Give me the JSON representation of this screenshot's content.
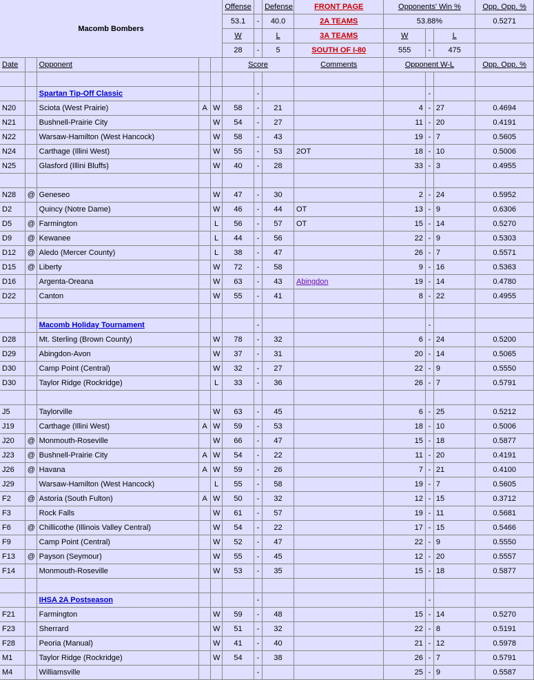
{
  "team_name": "Macomb Bombers",
  "header": {
    "offense_label": "Offense",
    "defense_label": "Defense",
    "opp_win_label": "Opponents' Win %",
    "opp_opp_label": "Opp. Opp. %",
    "offense_val": "53.1",
    "defense_val": "40.0",
    "opp_win_val": "53.88%",
    "opp_opp_val": "0.5271",
    "w_label": "W",
    "l_label": "L",
    "team_w": "28",
    "team_l": "5",
    "opp_w": "555",
    "opp_l": "475",
    "link_front": "FRONT PAGE",
    "link_2a": "2A TEAMS",
    "link_3a": "3A TEAMS",
    "link_south": "SOUTH OF I-80"
  },
  "cols": {
    "date": "Date",
    "opponent": "Opponent",
    "score": "Score",
    "comments": "Comments",
    "opp_wl": "Opponent W-L",
    "opp_opp": "Opp. Opp. %"
  },
  "sections": [
    {
      "title": "Spartan Tip-Off Classic",
      "games": [
        {
          "date": "N20",
          "at": "",
          "opp": "Sciota (West Prairie)",
          "away": "A",
          "wl": "W",
          "s1": "58",
          "s2": "21",
          "comm": "",
          "ow": "4",
          "ol": "27",
          "oop": "0.4694"
        },
        {
          "date": "N21",
          "at": "",
          "opp": "Bushnell-Prairie City",
          "away": "",
          "wl": "W",
          "s1": "54",
          "s2": "27",
          "comm": "",
          "ow": "11",
          "ol": "20",
          "oop": "0.4191"
        },
        {
          "date": "N22",
          "at": "",
          "opp": "Warsaw-Hamilton (West Hancock)",
          "away": "",
          "wl": "W",
          "s1": "58",
          "s2": "43",
          "comm": "",
          "ow": "19",
          "ol": "7",
          "oop": "0.5605"
        },
        {
          "date": "N24",
          "at": "",
          "opp": "Carthage (Illini West)",
          "away": "",
          "wl": "W",
          "s1": "55",
          "s2": "53",
          "comm": "2OT",
          "ow": "18",
          "ol": "10",
          "oop": "0.5006"
        },
        {
          "date": "N25",
          "at": "",
          "opp": "Glasford (Illini Bluffs)",
          "away": "",
          "wl": "W",
          "s1": "40",
          "s2": "28",
          "comm": "",
          "ow": "33",
          "ol": "3",
          "oop": "0.4955"
        }
      ]
    },
    {
      "title": "",
      "games": [
        {
          "date": "N28",
          "at": "@",
          "opp": "Geneseo",
          "away": "",
          "wl": "W",
          "s1": "47",
          "s2": "30",
          "comm": "",
          "ow": "2",
          "ol": "24",
          "oop": "0.5952"
        },
        {
          "date": "D2",
          "at": "",
          "opp": "Quincy (Notre Dame)",
          "away": "",
          "wl": "W",
          "s1": "46",
          "s2": "44",
          "comm": "OT",
          "ow": "13",
          "ol": "9",
          "oop": "0.6306"
        },
        {
          "date": "D5",
          "at": "@",
          "opp": "Farmington",
          "away": "",
          "wl": "L",
          "s1": "56",
          "s2": "57",
          "comm": "OT",
          "ow": "15",
          "ol": "14",
          "oop": "0.5270"
        },
        {
          "date": "D9",
          "at": "@",
          "opp": "Kewanee",
          "away": "",
          "wl": "L",
          "s1": "44",
          "s2": "56",
          "comm": "",
          "ow": "22",
          "ol": "9",
          "oop": "0.5303"
        },
        {
          "date": "D12",
          "at": "@",
          "opp": "Aledo (Mercer County)",
          "away": "",
          "wl": "L",
          "s1": "38",
          "s2": "47",
          "comm": "",
          "ow": "26",
          "ol": "7",
          "oop": "0.5571"
        },
        {
          "date": "D15",
          "at": "@",
          "opp": "Liberty",
          "away": "",
          "wl": "W",
          "s1": "72",
          "s2": "58",
          "comm": "",
          "ow": "9",
          "ol": "16",
          "oop": "0.5363"
        },
        {
          "date": "D16",
          "at": "",
          "opp": "Argenta-Oreana",
          "away": "",
          "wl": "W",
          "s1": "63",
          "s2": "43",
          "comm_link": "Abingdon",
          "ow": "19",
          "ol": "14",
          "oop": "0.4780"
        },
        {
          "date": "D22",
          "at": "",
          "opp": "Canton",
          "away": "",
          "wl": "W",
          "s1": "55",
          "s2": "41",
          "comm": "",
          "ow": "8",
          "ol": "22",
          "oop": "0.4955"
        }
      ]
    },
    {
      "title": "Macomb Holiday Tournament",
      "games": [
        {
          "date": "D28",
          "at": "",
          "opp": "Mt. Sterling (Brown County)",
          "away": "",
          "wl": "W",
          "s1": "78",
          "s2": "32",
          "comm": "",
          "ow": "6",
          "ol": "24",
          "oop": "0.5200"
        },
        {
          "date": "D29",
          "at": "",
          "opp": "Abingdon-Avon",
          "away": "",
          "wl": "W",
          "s1": "37",
          "s2": "31",
          "comm": "",
          "ow": "20",
          "ol": "14",
          "oop": "0.5065"
        },
        {
          "date": "D30",
          "at": "",
          "opp": "Camp Point (Central)",
          "away": "",
          "wl": "W",
          "s1": "32",
          "s2": "27",
          "comm": "",
          "ow": "22",
          "ol": "9",
          "oop": "0.5550"
        },
        {
          "date": "D30",
          "at": "",
          "opp": "Taylor Ridge (Rockridge)",
          "away": "",
          "wl": "L",
          "s1": "33",
          "s2": "36",
          "comm": "",
          "ow": "26",
          "ol": "7",
          "oop": "0.5791"
        }
      ]
    },
    {
      "title": "",
      "games": [
        {
          "date": "J5",
          "at": "",
          "opp": "Taylorville",
          "away": "",
          "wl": "W",
          "s1": "63",
          "s2": "45",
          "comm": "",
          "ow": "6",
          "ol": "25",
          "oop": "0.5212"
        },
        {
          "date": "J19",
          "at": "",
          "opp": "Carthage (Illini West)",
          "away": "A",
          "wl": "W",
          "s1": "59",
          "s2": "53",
          "comm": "",
          "ow": "18",
          "ol": "10",
          "oop": "0.5006"
        },
        {
          "date": "J20",
          "at": "@",
          "opp": "Monmouth-Roseville",
          "away": "",
          "wl": "W",
          "s1": "66",
          "s2": "47",
          "comm": "",
          "ow": "15",
          "ol": "18",
          "oop": "0.5877"
        },
        {
          "date": "J23",
          "at": "@",
          "opp": "Bushnell-Prairie City",
          "away": "A",
          "wl": "W",
          "s1": "54",
          "s2": "22",
          "comm": "",
          "ow": "11",
          "ol": "20",
          "oop": "0.4191"
        },
        {
          "date": "J26",
          "at": "@",
          "opp": "Havana",
          "away": "A",
          "wl": "W",
          "s1": "59",
          "s2": "26",
          "comm": "",
          "ow": "7",
          "ol": "21",
          "oop": "0.4100"
        },
        {
          "date": "J29",
          "at": "",
          "opp": "Warsaw-Hamilton (West Hancock)",
          "away": "",
          "wl": "L",
          "s1": "55",
          "s2": "58",
          "comm": "",
          "ow": "19",
          "ol": "7",
          "oop": "0.5605"
        },
        {
          "date": "F2",
          "at": "@",
          "opp": "Astoria (South Fulton)",
          "away": "A",
          "wl": "W",
          "s1": "50",
          "s2": "32",
          "comm": "",
          "ow": "12",
          "ol": "15",
          "oop": "0.3712"
        },
        {
          "date": "F3",
          "at": "",
          "opp": "Rock Falls",
          "away": "",
          "wl": "W",
          "s1": "61",
          "s2": "57",
          "comm": "",
          "ow": "19",
          "ol": "11",
          "oop": "0.5681"
        },
        {
          "date": "F6",
          "at": "@",
          "opp": "Chillicothe (Illinois Valley Central)",
          "away": "",
          "wl": "W",
          "s1": "54",
          "s2": "22",
          "comm": "",
          "ow": "17",
          "ol": "15",
          "oop": "0.5466"
        },
        {
          "date": "F9",
          "at": "",
          "opp": "Camp Point (Central)",
          "away": "",
          "wl": "W",
          "s1": "52",
          "s2": "47",
          "comm": "",
          "ow": "22",
          "ol": "9",
          "oop": "0.5550"
        },
        {
          "date": "F13",
          "at": "@",
          "opp": "Payson (Seymour)",
          "away": "",
          "wl": "W",
          "s1": "55",
          "s2": "45",
          "comm": "",
          "ow": "12",
          "ol": "20",
          "oop": "0.5557"
        },
        {
          "date": "F14",
          "at": "",
          "opp": "Monmouth-Roseville",
          "away": "",
          "wl": "W",
          "s1": "53",
          "s2": "35",
          "comm": "",
          "ow": "15",
          "ol": "18",
          "oop": "0.5877"
        }
      ]
    },
    {
      "title": "IHSA 2A Postseason",
      "games": [
        {
          "date": "F21",
          "at": "",
          "opp": "Farmington",
          "away": "",
          "wl": "W",
          "s1": "59",
          "s2": "48",
          "comm": "",
          "ow": "15",
          "ol": "14",
          "oop": "0.5270"
        },
        {
          "date": "F23",
          "at": "",
          "opp": "Sherrard",
          "away": "",
          "wl": "W",
          "s1": "51",
          "s2": "32",
          "comm": "",
          "ow": "22",
          "ol": "8",
          "oop": "0.5191"
        },
        {
          "date": "F28",
          "at": "",
          "opp": "Peoria (Manual)",
          "away": "",
          "wl": "W",
          "s1": "41",
          "s2": "40",
          "comm": "",
          "ow": "21",
          "ol": "12",
          "oop": "0.5978"
        },
        {
          "date": "M1",
          "at": "",
          "opp": "Taylor Ridge (Rockridge)",
          "away": "",
          "wl": "W",
          "s1": "54",
          "s2": "38",
          "comm": "",
          "ow": "26",
          "ol": "7",
          "oop": "0.5791"
        },
        {
          "date": "M4",
          "at": "",
          "opp": "Williamsville",
          "away": "",
          "wl": "",
          "s1": "",
          "s2": "",
          "comm": "",
          "ow": "25",
          "ol": "9",
          "oop": "0.5587"
        }
      ]
    }
  ]
}
